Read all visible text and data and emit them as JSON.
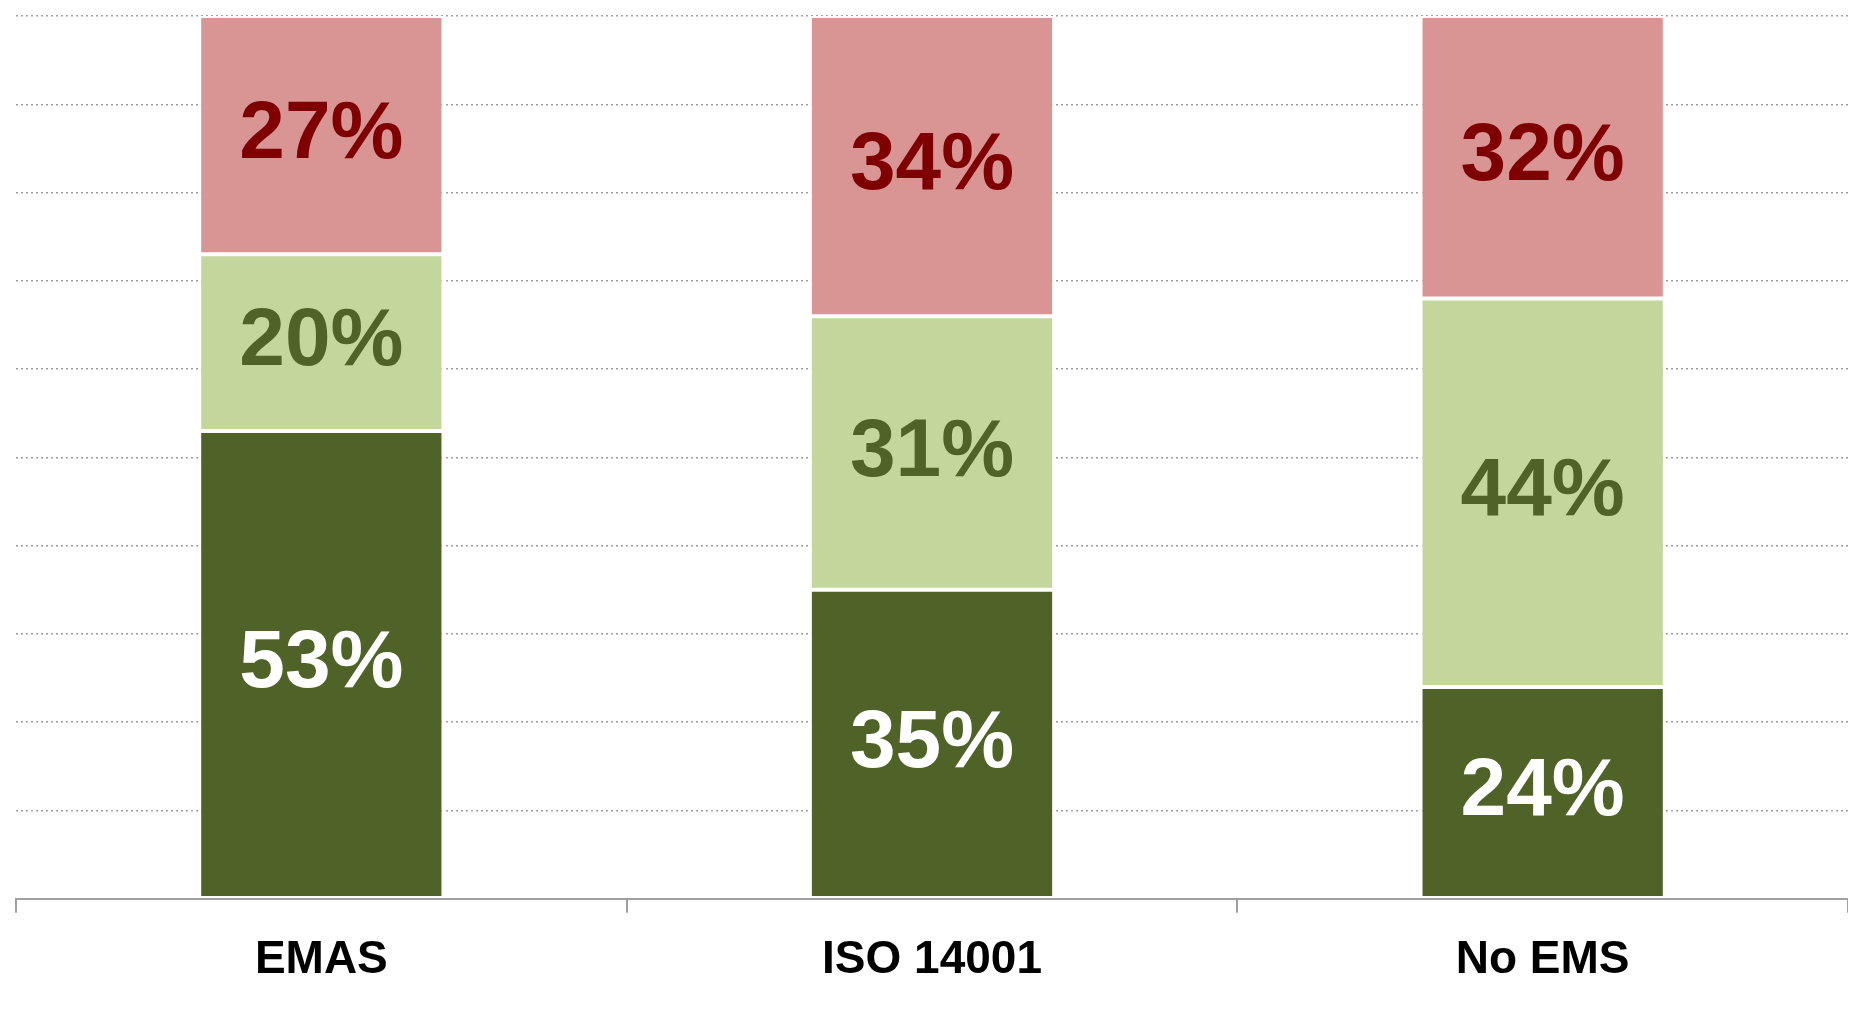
{
  "chart_data": {
    "type": "bar",
    "stacked": true,
    "relative": false,
    "categories": [
      "EMAS",
      "ISO 14001",
      "No EMS"
    ],
    "series": [
      {
        "color": "#4f6228",
        "values": [
          53,
          35,
          24
        ],
        "value_labels": [
          "53%",
          "35%",
          "24%"
        ]
      },
      {
        "color": "#c3d69b",
        "values": [
          20,
          31,
          44
        ],
        "value_labels": [
          "20%",
          "31%",
          "44%"
        ]
      },
      {
        "color": "#d99594",
        "values": [
          27,
          34,
          32
        ],
        "value_labels": [
          "27%",
          "34%",
          "32%"
        ]
      }
    ],
    "ylim": [
      0,
      100
    ],
    "yticks": [
      {
        "value": 0,
        "label": null
      },
      {
        "value": 10,
        "label": null
      },
      {
        "value": 20,
        "label": null
      },
      {
        "value": 30,
        "label": null
      },
      {
        "value": 40,
        "label": null
      },
      {
        "value": 50,
        "label": null
      },
      {
        "value": 60,
        "label": null
      },
      {
        "value": 70,
        "label": null
      },
      {
        "value": 80,
        "label": null
      },
      {
        "value": 90,
        "label": null
      },
      {
        "value": 100,
        "label": null
      }
    ],
    "grid": "y",
    "legend": false,
    "tick_labels": "x"
  }
}
